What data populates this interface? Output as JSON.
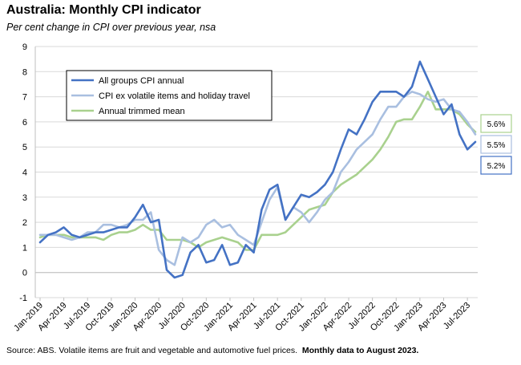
{
  "title": "Australia: Monthly CPI indicator",
  "subtitle": "Per cent change in CPI over previous year, nsa",
  "footnote": {
    "text": "Source: ABS. Volatile items are fruit and vegetable and automotive fuel prices.",
    "bold": "Monthly data to August 2023."
  },
  "chart_data": {
    "type": "line",
    "ylim": [
      -1,
      9
    ],
    "yticks": [
      -1,
      0,
      1,
      2,
      3,
      4,
      5,
      6,
      7,
      8,
      9
    ],
    "grid": true,
    "legend_position": "top-left",
    "x": [
      "Jan-2019",
      "Feb-2019",
      "Mar-2019",
      "Apr-2019",
      "May-2019",
      "Jun-2019",
      "Jul-2019",
      "Aug-2019",
      "Sep-2019",
      "Oct-2019",
      "Nov-2019",
      "Dec-2019",
      "Jan-2020",
      "Feb-2020",
      "Mar-2020",
      "Apr-2020",
      "May-2020",
      "Jun-2020",
      "Jul-2020",
      "Aug-2020",
      "Sep-2020",
      "Oct-2020",
      "Nov-2020",
      "Dec-2020",
      "Jan-2021",
      "Feb-2021",
      "Mar-2021",
      "Apr-2021",
      "May-2021",
      "Jun-2021",
      "Jul-2021",
      "Aug-2021",
      "Sep-2021",
      "Oct-2021",
      "Nov-2021",
      "Dec-2021",
      "Jan-2022",
      "Feb-2022",
      "Mar-2022",
      "Apr-2022",
      "May-2022",
      "Jun-2022",
      "Jul-2022",
      "Aug-2022",
      "Sep-2022",
      "Oct-2022",
      "Nov-2022",
      "Dec-2022",
      "Jan-2023",
      "Feb-2023",
      "Mar-2023",
      "Apr-2023",
      "May-2023",
      "Jun-2023",
      "Jul-2023",
      "Aug-2023"
    ],
    "xtick_labels": [
      "Jan-2019",
      "Apr-2019",
      "Jul-2019",
      "Oct-2019",
      "Jan-2020",
      "Apr-2020",
      "Jul-2020",
      "Oct-2020",
      "Jan-2021",
      "Apr-2021",
      "Jul-2021",
      "Oct-2021",
      "Jan-2022",
      "Apr-2022",
      "Jul-2022",
      "Oct-2022",
      "Jan-2023",
      "Apr-2023",
      "Jul-2023"
    ],
    "series": [
      {
        "name": "All groups CPI annual",
        "color": "#4472C4",
        "values": [
          1.2,
          1.5,
          1.6,
          1.8,
          1.5,
          1.4,
          1.5,
          1.6,
          1.6,
          1.7,
          1.8,
          1.8,
          2.2,
          2.7,
          2.0,
          2.1,
          0.1,
          -0.2,
          -0.1,
          0.8,
          1.1,
          0.4,
          0.5,
          1.1,
          0.3,
          0.4,
          1.1,
          0.8,
          2.5,
          3.3,
          3.5,
          2.1,
          2.6,
          3.1,
          3.0,
          3.2,
          3.5,
          4.0,
          4.9,
          5.7,
          5.5,
          6.1,
          6.8,
          7.2,
          7.2,
          7.2,
          7.0,
          7.4,
          8.4,
          7.7,
          7.0,
          6.3,
          6.7,
          5.5,
          4.9,
          5.2
        ]
      },
      {
        "name": "CPI ex volatile items and holiday travel",
        "color": "#A9BFE0",
        "values": [
          1.5,
          1.5,
          1.5,
          1.4,
          1.3,
          1.4,
          1.6,
          1.6,
          1.9,
          1.9,
          1.8,
          1.9,
          2.1,
          2.1,
          2.4,
          0.9,
          0.5,
          0.3,
          1.4,
          1.2,
          1.4,
          1.9,
          2.1,
          1.8,
          1.9,
          1.5,
          1.3,
          1.1,
          2.0,
          2.9,
          3.4,
          2.1,
          2.6,
          2.4,
          2.0,
          2.4,
          2.9,
          3.2,
          4.0,
          4.4,
          4.9,
          5.2,
          5.5,
          6.1,
          6.6,
          6.6,
          7.0,
          7.2,
          7.1,
          6.9,
          6.8,
          6.9,
          6.5,
          6.4,
          6.0,
          5.5
        ]
      },
      {
        "name": "Annual trimmed mean",
        "color": "#A9D18E",
        "values": [
          1.4,
          1.5,
          1.5,
          1.5,
          1.4,
          1.4,
          1.4,
          1.4,
          1.3,
          1.5,
          1.6,
          1.6,
          1.7,
          1.9,
          1.7,
          1.7,
          1.3,
          1.3,
          1.3,
          1.2,
          1.0,
          1.2,
          1.3,
          1.4,
          1.3,
          1.2,
          0.9,
          0.9,
          1.5,
          1.5,
          1.5,
          1.6,
          1.9,
          2.2,
          2.5,
          2.6,
          2.7,
          3.2,
          3.5,
          3.7,
          3.9,
          4.2,
          4.5,
          4.9,
          5.4,
          6.0,
          6.1,
          6.1,
          6.6,
          7.2,
          6.5,
          6.5,
          6.5,
          6.3,
          5.9,
          5.6
        ]
      }
    ],
    "end_labels": [
      {
        "text": "5.6%",
        "color": "#A9D18E"
      },
      {
        "text": "5.5%",
        "color": "#A9BFE0"
      },
      {
        "text": "5.2%",
        "color": "#4472C4"
      }
    ]
  }
}
